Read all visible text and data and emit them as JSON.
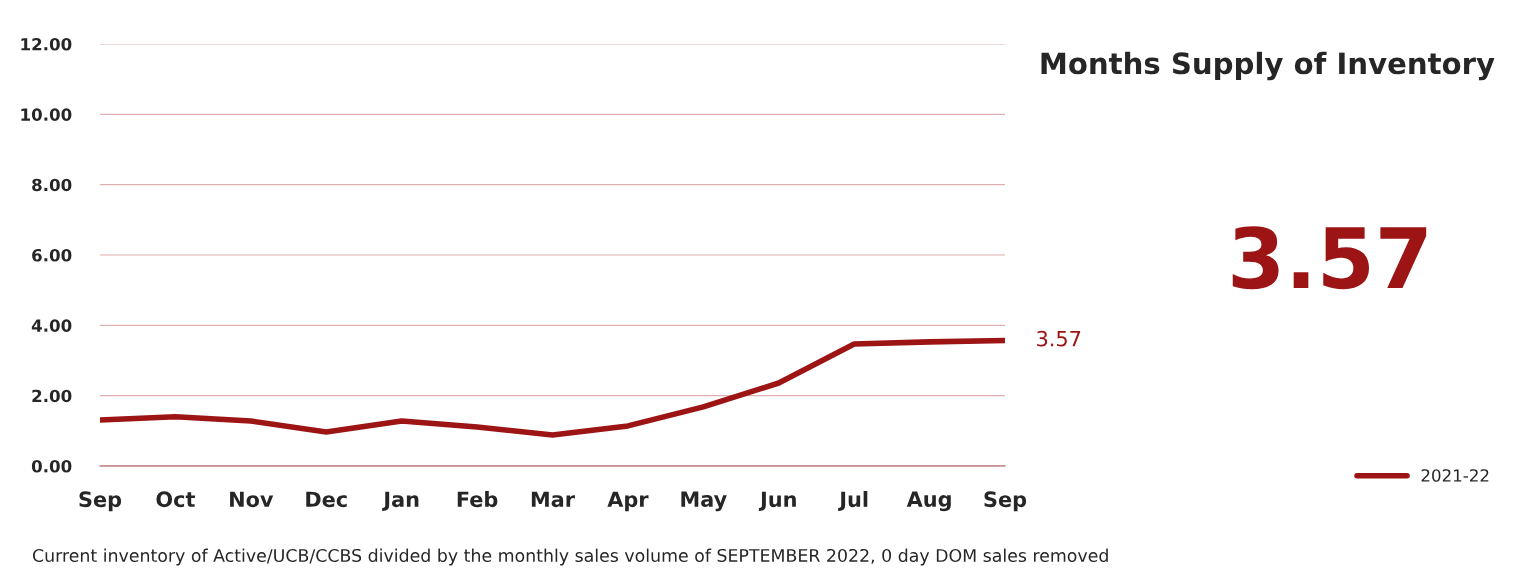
{
  "chart_data": {
    "type": "line",
    "title": "Months Supply of Inventory",
    "categories": [
      "Sep",
      "Oct",
      "Nov",
      "Dec",
      "Jan",
      "Feb",
      "Mar",
      "Apr",
      "May",
      "Jun",
      "Jul",
      "Aug",
      "Sep"
    ],
    "series": [
      {
        "name": "2021-22",
        "color": "#9c1414",
        "values": [
          1.31,
          1.4,
          1.28,
          0.97,
          1.28,
          1.11,
          0.88,
          1.14,
          1.68,
          2.36,
          3.47,
          3.53,
          3.57
        ],
        "value_labels": [
          null,
          null,
          null,
          null,
          null,
          null,
          null,
          null,
          null,
          null,
          null,
          null,
          "3.57"
        ]
      }
    ],
    "ylim": [
      0,
      12
    ],
    "yticks": [
      {
        "value": 0,
        "label": "0.00"
      },
      {
        "value": 2,
        "label": "2.00"
      },
      {
        "value": 4,
        "label": "4.00"
      },
      {
        "value": 6,
        "label": "6.00"
      },
      {
        "value": 8,
        "label": "8.00"
      },
      {
        "value": 10,
        "label": "10.00"
      },
      {
        "value": 12,
        "label": "12.00"
      }
    ],
    "grid": "y",
    "legend": "bottom right",
    "marker": "none",
    "line_style": "solid",
    "annotations": [
      "3.57",
      "Current inventory of Active/UCB/CCBS divided by the monthly sales volume of SEPTEMBER 2022, 0 day DOM sales removed"
    ]
  }
}
